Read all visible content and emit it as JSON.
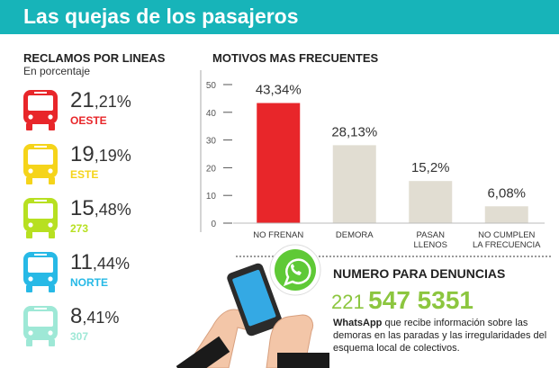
{
  "header": {
    "title": "Las quejas de los pasajeros",
    "bg_color": "#17b4b9"
  },
  "lines_section": {
    "title": "RECLAMOS POR LINEAS",
    "subtitle": "En porcentaje",
    "items": [
      {
        "int": "21",
        "dec": ",21%",
        "name": "OESTE",
        "color": "#e8262a",
        "icon": "bus-icon"
      },
      {
        "int": "19",
        "dec": ",19%",
        "name": "ESTE",
        "color": "#f5d41a",
        "icon": "bus-icon"
      },
      {
        "int": "15",
        "dec": ",48%",
        "name": "273",
        "color": "#b7e021",
        "icon": "bus-icon"
      },
      {
        "int": "11",
        "dec": ",44%",
        "name": "NORTE",
        "color": "#27b9e6",
        "icon": "bus-icon"
      },
      {
        "int": "8",
        "dec": ",41%",
        "name": "307",
        "color": "#9ee8d6",
        "icon": "bus-icon"
      }
    ]
  },
  "chart_data": {
    "type": "bar",
    "title": "MOTIVOS MAS FRECUENTES",
    "categories": [
      "NO FRENAN",
      "DEMORA",
      "PASAN\nLLENOS",
      "NO CUMPLEN\nLA FRECUENCIA"
    ],
    "values": [
      43.34,
      28.13,
      15.2,
      6.08
    ],
    "data_labels": [
      "43,34%",
      "28,13%",
      "15,2%",
      "6,08%"
    ],
    "bar_colors": [
      "#e8262a",
      "#e1ddd2",
      "#e1ddd2",
      "#e1ddd2"
    ],
    "ylim": [
      0,
      50
    ],
    "yticks": [
      0,
      10,
      20,
      30,
      40,
      50
    ],
    "grid": false
  },
  "denuncias": {
    "title": "NUMERO PARA DENUNCIAS",
    "phone_prefix": "221",
    "phone_number": "547 5351",
    "desc_lead": "WhatsApp",
    "desc_rest": " que recibe información sobre las demoras en las paradas y las irregularidades del esquema local de colectivos.",
    "accent_color": "#8cc63f",
    "illustration": "hands-holding-phone-whatsapp-icon"
  }
}
